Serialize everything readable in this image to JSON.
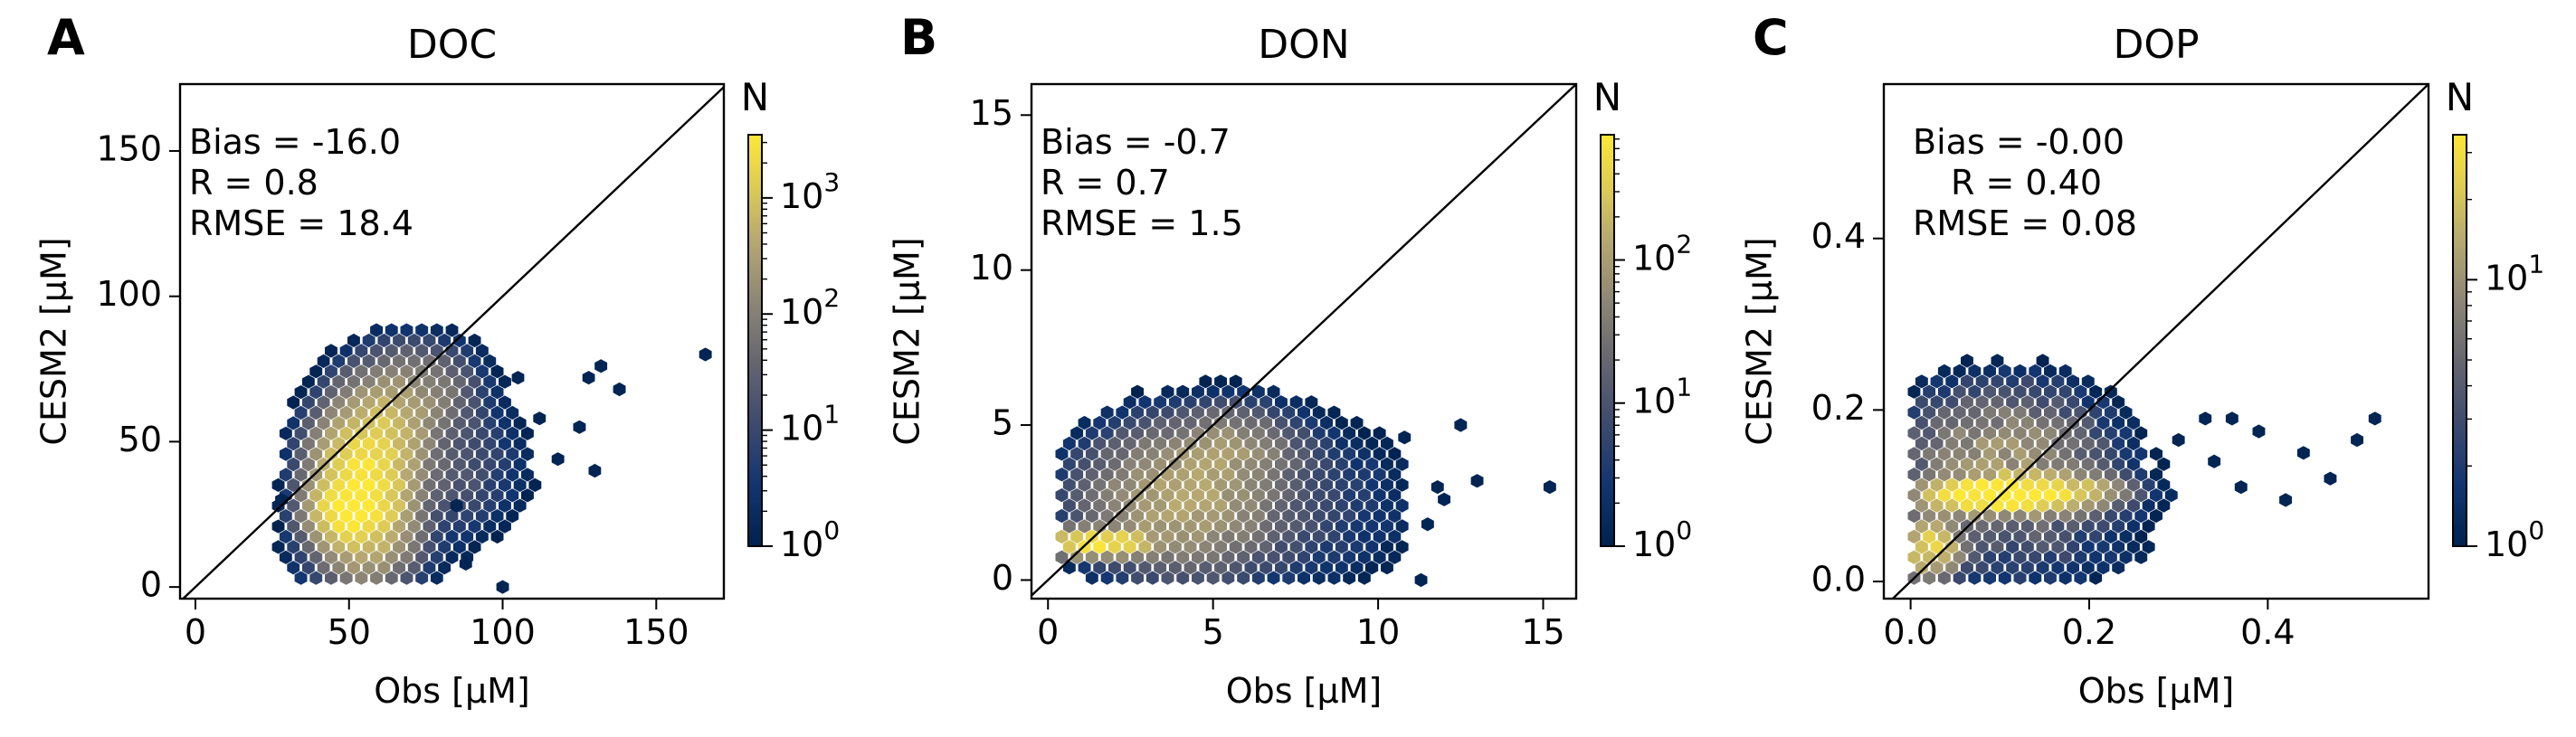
{
  "figure": {
    "panels": [
      {
        "letter": "A",
        "title": "DOC",
        "xlabel": "Obs [µM]",
        "ylabel": "CESM2 [µM]",
        "stats": [
          "Bias = -16.0",
          "R = 0.8",
          "RMSE = 18.4"
        ],
        "xticks": [
          "0",
          "50",
          "100",
          "150"
        ],
        "yticks": [
          "0",
          "50",
          "100",
          "150"
        ],
        "colorbar": {
          "label": "N",
          "ticks": [
            "10^0",
            "10^1",
            "10^2",
            "10^3"
          ]
        }
      },
      {
        "letter": "B",
        "title": "DON",
        "xlabel": "Obs [µM]",
        "ylabel": "CESM2 [µM]",
        "stats": [
          "Bias = -0.7",
          "R = 0.7",
          "RMSE = 1.5"
        ],
        "xticks": [
          "0",
          "5",
          "10",
          "15"
        ],
        "yticks": [
          "0",
          "5",
          "10",
          "15"
        ],
        "colorbar": {
          "label": "N",
          "ticks": [
            "10^0",
            "10^1",
            "10^2"
          ]
        }
      },
      {
        "letter": "C",
        "title": "DOP",
        "xlabel": "Obs [µM]",
        "ylabel": "CESM2 [µM]",
        "stats": [
          "Bias = -0.00",
          "R = 0.40",
          "RMSE = 0.08"
        ],
        "xticks": [
          "0.0",
          "0.2",
          "0.4"
        ],
        "yticks": [
          "0.0",
          "0.2",
          "0.4"
        ],
        "colorbar": {
          "label": "N",
          "ticks": [
            "10^0",
            "10^1"
          ]
        }
      }
    ]
  },
  "chart_data": [
    {
      "type": "heatmap",
      "title": "DOC",
      "xlabel": "Obs [µM]",
      "ylabel": "CESM2 [µM]",
      "xlim": [
        -5,
        172
      ],
      "ylim": [
        -4,
        173
      ],
      "stats": {
        "bias": -16.0,
        "r": 0.8,
        "rmse": 18.4
      },
      "reference_line": "1:1",
      "colorscale": "cividis",
      "color_scale_type": "log",
      "colorbar": {
        "label": "N",
        "range": [
          1,
          3500
        ],
        "ticks": [
          1,
          10,
          100,
          1000
        ]
      },
      "density_clusters": [
        {
          "x": 55,
          "y": 35,
          "sx": 7,
          "sy": 12,
          "rot": 0.9,
          "peak": 3300
        },
        {
          "x": 48,
          "y": 26,
          "sx": 5,
          "sy": 5,
          "rot": 0,
          "peak": 2500
        },
        {
          "x": 63,
          "y": 55,
          "sx": 7,
          "sy": 9,
          "rot": 1.0,
          "peak": 500
        },
        {
          "x": 72,
          "y": 67,
          "sx": 9,
          "sy": 8,
          "rot": 0.6,
          "peak": 110
        },
        {
          "x": 78,
          "y": 42,
          "sx": 13,
          "sy": 13,
          "rot": 0,
          "peak": 25
        },
        {
          "x": 55,
          "y": 12,
          "sx": 11,
          "sy": 7,
          "rot": 0,
          "peak": 25
        }
      ],
      "density_extent": {
        "x": [
          24,
          136
        ],
        "y": [
          0,
          95
        ]
      },
      "outliers": [
        [
          166,
          80
        ],
        [
          100,
          0
        ],
        [
          130,
          40
        ],
        [
          118,
          44
        ],
        [
          112,
          58
        ],
        [
          125,
          55
        ],
        [
          138,
          68
        ],
        [
          105,
          72
        ],
        [
          132,
          76
        ],
        [
          128,
          72
        ],
        [
          88,
          8
        ],
        [
          85,
          28
        ],
        [
          28,
          30
        ]
      ]
    },
    {
      "type": "heatmap",
      "title": "DON",
      "xlabel": "Obs [µM]",
      "ylabel": "CESM2 [µM]",
      "xlim": [
        -0.5,
        16
      ],
      "ylim": [
        -0.6,
        16
      ],
      "stats": {
        "bias": -0.7,
        "r": 0.7,
        "rmse": 1.5
      },
      "reference_line": "1:1",
      "colorscale": "cividis",
      "color_scale_type": "log",
      "colorbar": {
        "label": "N",
        "range": [
          1,
          750
        ],
        "ticks": [
          1,
          10,
          100
        ]
      },
      "density_clusters": [
        {
          "x": 1.5,
          "y": 1.2,
          "sx": 0.8,
          "sy": 0.22,
          "rot": 0,
          "peak": 700
        },
        {
          "x": 4.0,
          "y": 2.6,
          "sx": 1.4,
          "sy": 1.1,
          "rot": 0.3,
          "peak": 120
        },
        {
          "x": 5.5,
          "y": 4.2,
          "sx": 1.0,
          "sy": 0.7,
          "rot": 0,
          "peak": 60
        },
        {
          "x": 6.0,
          "y": 2.5,
          "sx": 2.6,
          "sy": 1.5,
          "rot": 0,
          "peak": 10
        }
      ],
      "density_extent": {
        "x": [
          0.2,
          10.8
        ],
        "y": [
          0,
          6.6
        ]
      },
      "outliers": [
        [
          15.2,
          3.0
        ],
        [
          12.5,
          5.0
        ],
        [
          11.8,
          3.0
        ],
        [
          11.3,
          0.0
        ],
        [
          13.0,
          3.2
        ],
        [
          12.0,
          2.6
        ],
        [
          10.8,
          4.6
        ],
        [
          11.5,
          1.8
        ],
        [
          9.8,
          0.4
        ]
      ]
    },
    {
      "type": "heatmap",
      "title": "DOP",
      "xlabel": "Obs [µM]",
      "ylabel": "CESM2 [µM]",
      "xlim": [
        -0.03,
        0.58
      ],
      "ylim": [
        -0.02,
        0.58
      ],
      "stats": {
        "bias": -0.0,
        "r": 0.4,
        "rmse": 0.08
      },
      "reference_line": "1:1",
      "colorscale": "cividis",
      "color_scale_type": "log",
      "colorbar": {
        "label": "N",
        "range": [
          1,
          35
        ],
        "ticks": [
          1,
          10
        ]
      },
      "density_clusters": [
        {
          "x": 0.09,
          "y": 0.1,
          "sx": 0.05,
          "sy": 0.012,
          "rot": 0,
          "peak": 32
        },
        {
          "x": 0.15,
          "y": 0.105,
          "sx": 0.05,
          "sy": 0.012,
          "rot": 0,
          "peak": 20
        },
        {
          "x": 0.02,
          "y": 0.04,
          "sx": 0.02,
          "sy": 0.02,
          "rot": 0,
          "peak": 25
        },
        {
          "x": 0.1,
          "y": 0.15,
          "sx": 0.07,
          "sy": 0.05,
          "rot": 0,
          "peak": 8
        },
        {
          "x": 0.12,
          "y": 0.08,
          "sx": 0.1,
          "sy": 0.08,
          "rot": 0,
          "peak": 3
        }
      ],
      "density_extent": {
        "x": [
          0.0,
          0.36
        ],
        "y": [
          0.0,
          0.26
        ]
      },
      "outliers": [
        [
          0.52,
          0.19
        ],
        [
          0.5,
          0.165
        ],
        [
          0.44,
          0.15
        ],
        [
          0.47,
          0.12
        ],
        [
          0.42,
          0.095
        ],
        [
          0.39,
          0.175
        ],
        [
          0.34,
          0.14
        ],
        [
          0.33,
          0.19
        ],
        [
          0.37,
          0.11
        ],
        [
          0.36,
          0.19
        ],
        [
          0.3,
          0.165
        ]
      ]
    }
  ]
}
